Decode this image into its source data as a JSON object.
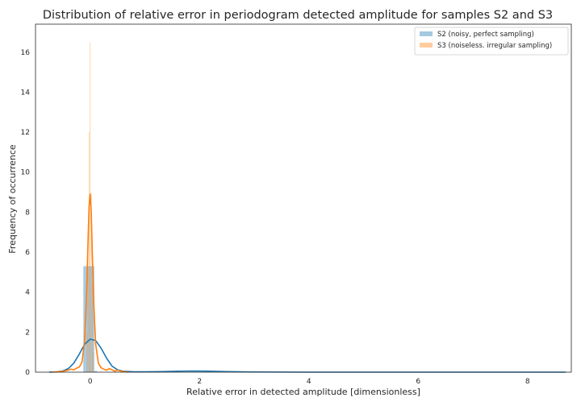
{
  "chart_data": {
    "type": "histogram+kde",
    "title": "Distribution of relative error in periodogram detected amplitude for samples S2 and S3",
    "xlabel": "Relative error in detected amplitude [dimensionless]",
    "ylabel": "Frequency of occurrence",
    "xlim": [
      -1.0,
      8.8
    ],
    "ylim": [
      0,
      17.4
    ],
    "xticks": [
      0,
      2,
      4,
      6,
      8
    ],
    "yticks": [
      0,
      2,
      4,
      6,
      8,
      10,
      12,
      14,
      16
    ],
    "grid": false,
    "legend_position": "top-right",
    "series": [
      {
        "name": "S2 (noisy, perfect sampling)",
        "color": "#1f77b4",
        "hist": {
          "bin_width": 0.049,
          "bins": [
            {
              "x": -0.1,
              "y": 5.3
            },
            {
              "x": -0.05,
              "y": 5.3
            },
            {
              "x": 0.0,
              "y": 5.3
            },
            {
              "x": 0.05,
              "y": 5.3
            },
            {
              "x": 0.1,
              "y": 0.06
            },
            {
              "x": 1.6,
              "y": 0.03
            },
            {
              "x": 2.2,
              "y": 0.03
            }
          ]
        },
        "kde": {
          "x": [
            -0.75,
            -0.6,
            -0.5,
            -0.4,
            -0.3,
            -0.2,
            -0.1,
            0.0,
            0.1,
            0.2,
            0.3,
            0.4,
            0.5,
            0.6,
            0.8,
            1.0,
            1.3,
            1.6,
            1.9,
            2.2,
            2.5,
            3.0,
            4.0,
            5.0,
            6.0,
            7.0,
            8.0,
            8.7
          ],
          "y": [
            0.0,
            0.02,
            0.06,
            0.18,
            0.45,
            0.9,
            1.4,
            1.65,
            1.58,
            1.2,
            0.7,
            0.3,
            0.12,
            0.05,
            0.02,
            0.02,
            0.03,
            0.05,
            0.06,
            0.05,
            0.03,
            0.01,
            0.0,
            0.0,
            0.0,
            0.0,
            0.0,
            0.0
          ]
        }
      },
      {
        "name": "S3 (noiseless. irregular sampling)",
        "color": "#ff7f0e",
        "hist": {
          "bin_width": 0.012,
          "bins": [
            {
              "x": -0.06,
              "y": 2.0
            },
            {
              "x": -0.04,
              "y": 6.0
            },
            {
              "x": -0.02,
              "y": 12.0
            },
            {
              "x": 0.0,
              "y": 16.5
            },
            {
              "x": 0.02,
              "y": 9.0
            },
            {
              "x": 0.04,
              "y": 4.5
            },
            {
              "x": 0.06,
              "y": 1.0
            }
          ]
        },
        "kde": {
          "x": [
            -0.7,
            -0.6,
            -0.5,
            -0.4,
            -0.35,
            -0.3,
            -0.25,
            -0.2,
            -0.15,
            -0.1,
            -0.07,
            -0.04,
            -0.02,
            0.0,
            0.02,
            0.04,
            0.07,
            0.1,
            0.15,
            0.2,
            0.25,
            0.3,
            0.35,
            0.4,
            0.45,
            0.5,
            0.55,
            0.6,
            0.7
          ],
          "y": [
            0.0,
            0.02,
            0.04,
            0.1,
            0.15,
            0.12,
            0.2,
            0.25,
            0.5,
            1.6,
            3.5,
            6.5,
            8.3,
            8.9,
            8.0,
            5.8,
            3.2,
            1.4,
            0.45,
            0.22,
            0.15,
            0.1,
            0.18,
            0.12,
            0.05,
            0.1,
            0.06,
            0.03,
            0.0
          ]
        }
      }
    ]
  }
}
